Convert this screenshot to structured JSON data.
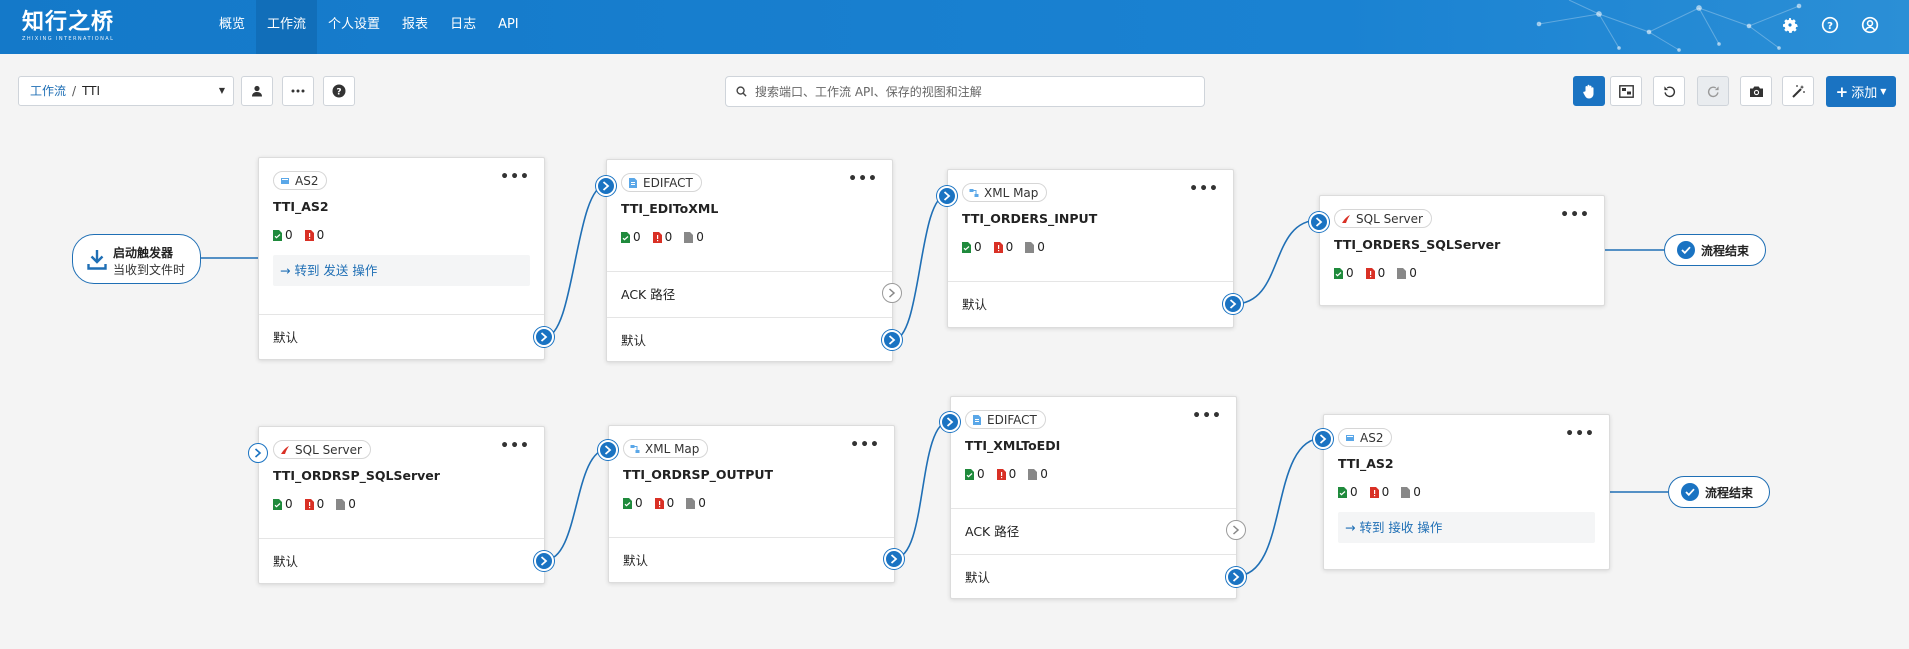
{
  "colors": {
    "nav_bg": "#1479c9",
    "accent": "#1a73c2",
    "success": "#1f8a3c",
    "error": "#d93025",
    "neutral": "#888888"
  },
  "brand": {
    "name_cn": "知行之桥",
    "name_en": "ZHIXING INTERNATIONAL"
  },
  "nav": {
    "items": [
      {
        "label": "概览",
        "active": false
      },
      {
        "label": "工作流",
        "active": true
      },
      {
        "label": "个人设置",
        "active": false
      },
      {
        "label": "报表",
        "active": false
      },
      {
        "label": "日志",
        "active": false
      },
      {
        "label": "API",
        "active": false
      }
    ],
    "right_icons": [
      "gear-icon",
      "help-icon",
      "user-circle-icon"
    ]
  },
  "breadcrumb": {
    "root": "工作流",
    "separator": "/",
    "current": "TTI"
  },
  "search": {
    "placeholder": "搜索端口、工作流 API、保存的视图和注解",
    "value": ""
  },
  "toolbar": {
    "left_icons": [
      "user-icon",
      "ellipsis-icon",
      "question-icon"
    ],
    "right_icons": [
      "hand-icon",
      "minimap-icon",
      "undo-icon",
      "redo-icon",
      "camera-icon",
      "magic-wand-icon"
    ],
    "add_label": "添加"
  },
  "trigger": {
    "title": "启动触发器",
    "subtitle": "当收到文件时"
  },
  "cards": {
    "as2_send": {
      "type": "AS2",
      "title": "TTI_AS2",
      "stats": [
        "0",
        "0"
      ],
      "forward": "转到 发送 操作",
      "rows": [
        "默认"
      ]
    },
    "edifact_in": {
      "type": "EDIFACT",
      "title": "TTI_EDIToXML",
      "stats": [
        "0",
        "0",
        "0"
      ],
      "rows": [
        "ACK 路径",
        "默认"
      ]
    },
    "xmlmap_in": {
      "type": "XML Map",
      "title": "TTI_ORDERS_INPUT",
      "stats": [
        "0",
        "0",
        "0"
      ],
      "rows": [
        "默认"
      ]
    },
    "sql_in": {
      "type": "SQL Server",
      "title": "TTI_ORDERS_SQLServer",
      "stats": [
        "0",
        "0",
        "0"
      ]
    },
    "sql_out": {
      "type": "SQL Server",
      "title": "TTI_ORDRSP_SQLServer",
      "stats": [
        "0",
        "0",
        "0"
      ],
      "rows": [
        "默认"
      ]
    },
    "xmlmap_out": {
      "type": "XML Map",
      "title": "TTI_ORDRSP_OUTPUT",
      "stats": [
        "0",
        "0",
        "0"
      ],
      "rows": [
        "默认"
      ]
    },
    "edifact_out": {
      "type": "EDIFACT",
      "title": "TTI_XMLToEDI",
      "stats": [
        "0",
        "0",
        "0"
      ],
      "rows": [
        "ACK 路径",
        "默认"
      ]
    },
    "as2_recv": {
      "type": "AS2",
      "title": "TTI_AS2",
      "stats": [
        "0",
        "0",
        "0"
      ],
      "forward": "转到 接收 操作"
    }
  },
  "end_nodes": [
    "流程结束",
    "流程结束"
  ]
}
